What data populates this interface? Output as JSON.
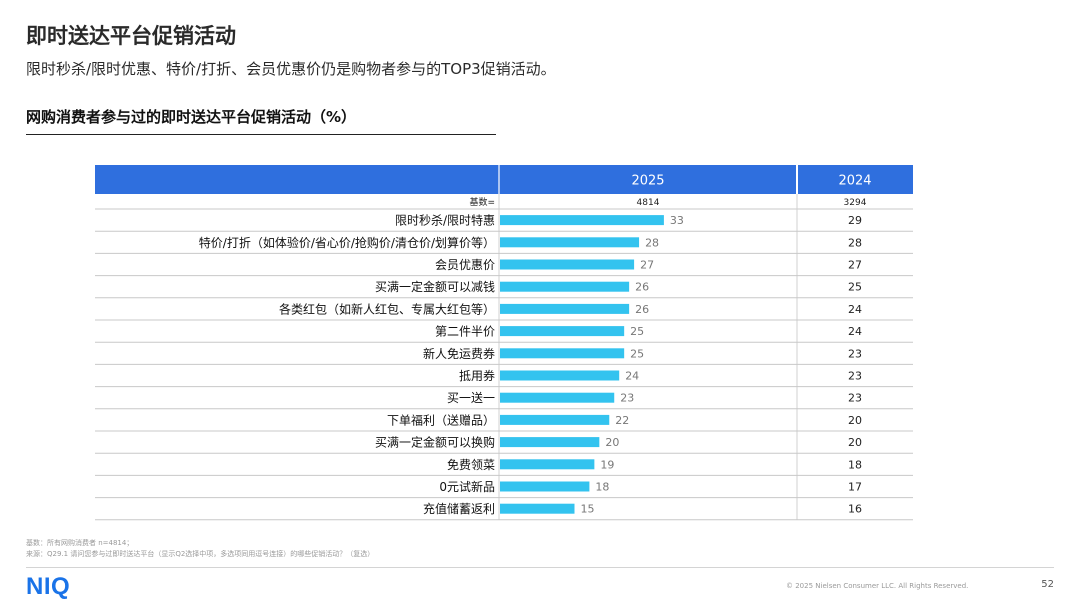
{
  "page": {
    "title": "即时送达平台促销活动",
    "subtitle": "限时秒杀/限时优惠、特价/打折、会员优惠价仍是购物者参与的TOP3促销活动。"
  },
  "chart_data": {
    "type": "bar",
    "title": "网购消费者参与过的即时送达平台促销活动（%）",
    "orientation": "horizontal",
    "series_header": "2025",
    "comparison_header": "2024",
    "base_label": "基数=",
    "base_2025": "4814",
    "base_2024": "3294",
    "categories": [
      "限时秒杀/限时特惠",
      "特价/打折（如体验价/省心价/抢购价/清仓价/划算价等）",
      "会员优惠价",
      "买满一定金额可以减钱",
      "各类红包（如新人红包、专属大红包等）",
      "第二件半价",
      "新人免运费券",
      "抵用券",
      "买一送一",
      "下单福利（送赠品）",
      "买满一定金额可以换购",
      "免费领菜",
      "0元试新品",
      "充值储蓄返利"
    ],
    "series": [
      {
        "name": "2025",
        "values": [
          33,
          28,
          27,
          26,
          26,
          25,
          25,
          24,
          23,
          22,
          20,
          19,
          18,
          15
        ],
        "color": "#33c3ef"
      },
      {
        "name": "2024",
        "values": [
          29,
          28,
          27,
          25,
          24,
          24,
          23,
          23,
          23,
          20,
          20,
          18,
          17,
          16
        ]
      }
    ],
    "xlim": [
      0,
      60
    ],
    "header_color": "#2f6fde"
  },
  "footer": {
    "note_base": "基数：所有网购消费者 n=4814；",
    "note_source": "来源：Q29.1 请问您参与过即时送达平台（显示Q2选择中项，多选项同用逗号连接）的哪些促销活动？（复选）",
    "logo": "NIQ",
    "copyright": "© 2025 Nielsen Consumer LLC. All Rights Reserved.",
    "page_number": "52"
  }
}
